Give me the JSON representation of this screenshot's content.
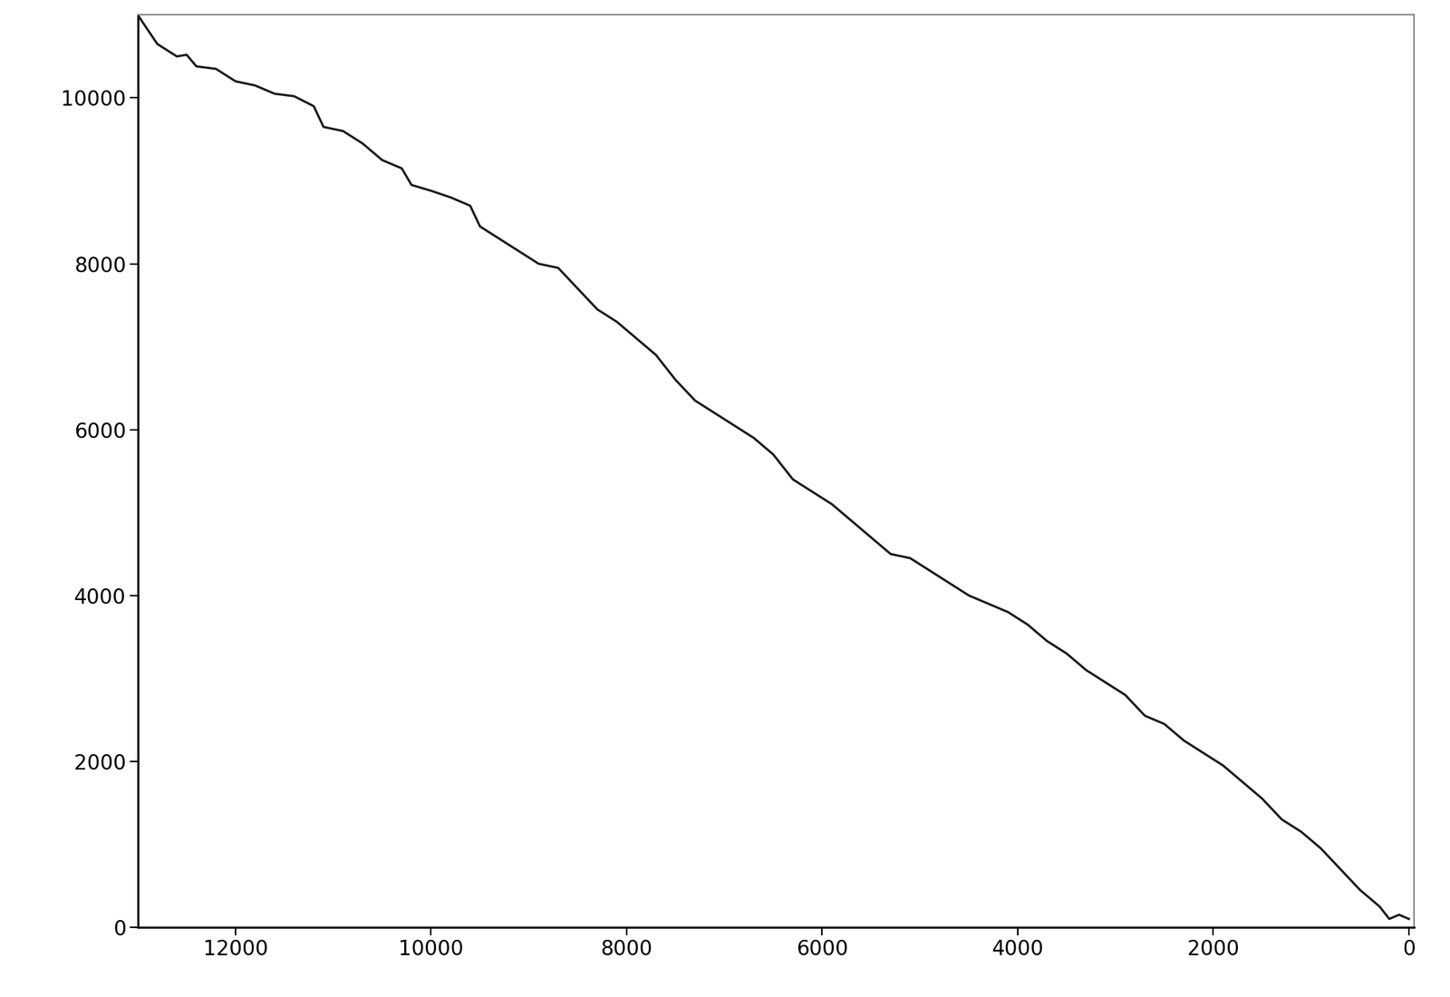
{
  "chart_data": {
    "type": "line",
    "x": [
      13000,
      12800,
      12600,
      12500,
      12400,
      12200,
      12000,
      11800,
      11600,
      11400,
      11200,
      11100,
      10900,
      10700,
      10500,
      10300,
      10200,
      10000,
      9800,
      9600,
      9500,
      9300,
      9100,
      8900,
      8700,
      8500,
      8300,
      8100,
      7900,
      7700,
      7500,
      7300,
      7100,
      6900,
      6700,
      6500,
      6300,
      6100,
      5900,
      5700,
      5500,
      5300,
      5100,
      4900,
      4700,
      4500,
      4300,
      4100,
      3900,
      3700,
      3500,
      3300,
      3100,
      2900,
      2700,
      2500,
      2300,
      2100,
      1900,
      1700,
      1500,
      1300,
      1100,
      900,
      700,
      500,
      300,
      200,
      100,
      0
    ],
    "values": [
      11000,
      10650,
      10500,
      10520,
      10380,
      10350,
      10200,
      10150,
      10050,
      10020,
      9900,
      9650,
      9600,
      9450,
      9250,
      9150,
      8950,
      8880,
      8800,
      8700,
      8450,
      8300,
      8150,
      8000,
      7950,
      7700,
      7450,
      7300,
      7100,
      6900,
      6600,
      6350,
      6200,
      6050,
      5900,
      5700,
      5400,
      5250,
      5100,
      4900,
      4700,
      4500,
      4450,
      4300,
      4150,
      4000,
      3900,
      3800,
      3650,
      3450,
      3300,
      3100,
      2950,
      2800,
      2550,
      2450,
      2250,
      2100,
      1950,
      1750,
      1550,
      1300,
      1150,
      950,
      700,
      450,
      250,
      100,
      150,
      100
    ],
    "color": "#1a1a1a",
    "xlim": [
      13000,
      -50
    ],
    "xticks": [
      12000,
      10000,
      8000,
      6000,
      4000,
      2000,
      0
    ],
    "ylim": [
      0,
      11000
    ],
    "yticks": [
      0,
      2000,
      4000,
      6000,
      8000,
      10000
    ],
    "grid": false
  }
}
